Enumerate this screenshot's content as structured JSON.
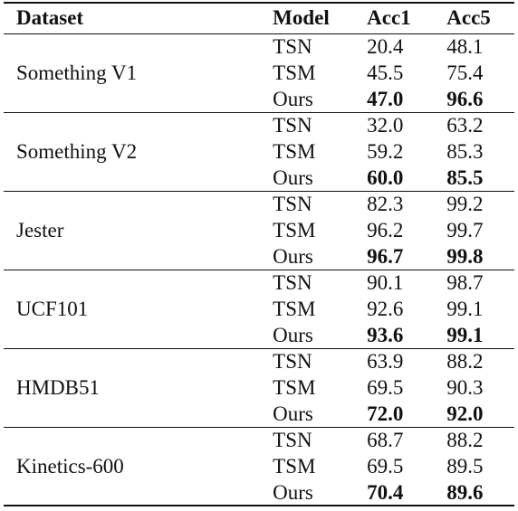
{
  "table": {
    "headers": {
      "dataset": "Dataset",
      "model": "Model",
      "acc1": "Acc1",
      "acc5": "Acc5"
    },
    "groups": [
      {
        "dataset": "Something V1",
        "rows": [
          {
            "model": "TSN",
            "acc1": "20.4",
            "acc5": "48.1"
          },
          {
            "model": "TSM",
            "acc1": "45.5",
            "acc5": "75.4"
          },
          {
            "model": "Ours",
            "acc1": "47.0",
            "acc5": "96.6"
          }
        ]
      },
      {
        "dataset": "Something V2",
        "rows": [
          {
            "model": "TSN",
            "acc1": "32.0",
            "acc5": "63.2"
          },
          {
            "model": "TSM",
            "acc1": "59.2",
            "acc5": "85.3"
          },
          {
            "model": "Ours",
            "acc1": "60.0",
            "acc5": "85.5"
          }
        ]
      },
      {
        "dataset": "Jester",
        "rows": [
          {
            "model": "TSN",
            "acc1": "82.3",
            "acc5": "99.2"
          },
          {
            "model": "TSM",
            "acc1": "96.2",
            "acc5": "99.7"
          },
          {
            "model": "Ours",
            "acc1": "96.7",
            "acc5": "99.8"
          }
        ]
      },
      {
        "dataset": "UCF101",
        "rows": [
          {
            "model": "TSN",
            "acc1": "90.1",
            "acc5": "98.7"
          },
          {
            "model": "TSM",
            "acc1": "92.6",
            "acc5": "99.1"
          },
          {
            "model": "Ours",
            "acc1": "93.6",
            "acc5": "99.1"
          }
        ]
      },
      {
        "dataset": "HMDB51",
        "rows": [
          {
            "model": "TSN",
            "acc1": "63.9",
            "acc5": "88.2"
          },
          {
            "model": "TSM",
            "acc1": "69.5",
            "acc5": "90.3"
          },
          {
            "model": "Ours",
            "acc1": "72.0",
            "acc5": "92.0"
          }
        ]
      },
      {
        "dataset": "Kinetics-600",
        "rows": [
          {
            "model": "TSN",
            "acc1": "68.7",
            "acc5": "88.2"
          },
          {
            "model": "TSM",
            "acc1": "69.5",
            "acc5": "89.5"
          },
          {
            "model": "Ours",
            "acc1": "70.4",
            "acc5": "89.6"
          }
        ]
      }
    ]
  }
}
